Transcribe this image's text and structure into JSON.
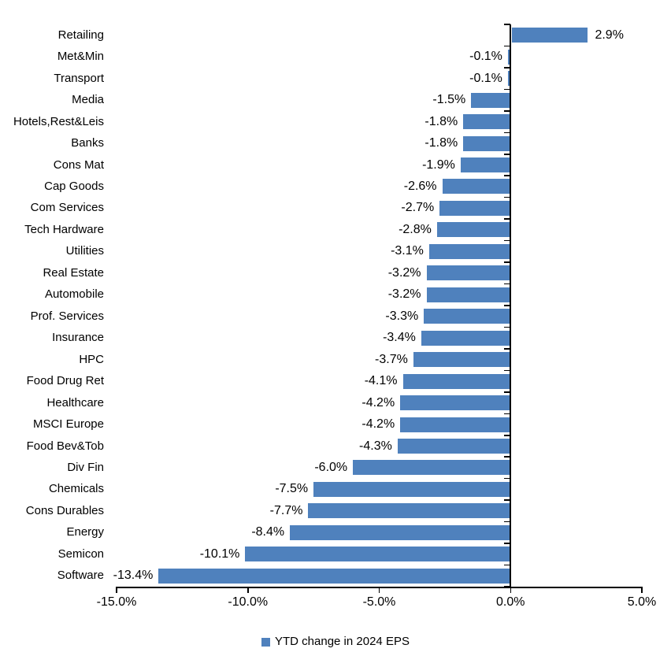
{
  "chart_data": {
    "type": "bar",
    "orientation": "horizontal",
    "title": "",
    "xlabel": "",
    "ylabel": "",
    "categories": [
      "Retailing",
      "Met&Min",
      "Transport",
      "Media",
      "Hotels,Rest&Leis",
      "Banks",
      "Cons Mat",
      "Cap Goods",
      "Com Services",
      "Tech Hardware",
      "Utilities",
      "Real Estate",
      "Automobile",
      "Prof. Services",
      "Insurance",
      "HPC",
      "Food Drug Ret",
      "Healthcare",
      "MSCI Europe",
      "Food Bev&Tob",
      "Div Fin",
      "Chemicals",
      "Cons Durables",
      "Energy",
      "Semicon",
      "Software"
    ],
    "series": [
      {
        "name": "YTD change in 2024 EPS",
        "color": "#4F81BD",
        "values": [
          2.9,
          -0.1,
          -0.1,
          -1.5,
          -1.8,
          -1.8,
          -1.9,
          -2.6,
          -2.7,
          -2.8,
          -3.1,
          -3.2,
          -3.2,
          -3.3,
          -3.4,
          -3.7,
          -4.1,
          -4.2,
          -4.2,
          -4.3,
          -6.0,
          -7.5,
          -7.7,
          -8.4,
          -10.1,
          -13.4
        ]
      }
    ],
    "value_labels": [
      "2.9%",
      "-0.1%",
      "-0.1%",
      "-1.5%",
      "-1.8%",
      "-1.8%",
      "-1.9%",
      "-2.6%",
      "-2.7%",
      "-2.8%",
      "-3.1%",
      "-3.2%",
      "-3.2%",
      "-3.3%",
      "-3.4%",
      "-3.7%",
      "-4.1%",
      "-4.2%",
      "-4.2%",
      "-4.3%",
      "-6.0%",
      "-7.5%",
      "-7.7%",
      "-8.4%",
      "-10.1%",
      "-13.4%"
    ],
    "x_ticks": [
      {
        "value": -15,
        "label": "-15.0%"
      },
      {
        "value": -10,
        "label": "-10.0%"
      },
      {
        "value": -5,
        "label": "-5.0%"
      },
      {
        "value": 0,
        "label": "0.0%"
      },
      {
        "value": 5,
        "label": "5.0%"
      }
    ],
    "xlim": [
      -15,
      5
    ],
    "grid": false,
    "legend_position": "bottom-center"
  },
  "legend": {
    "label": "YTD change in 2024 EPS",
    "swatch_color": "#4F81BD"
  },
  "colors": {
    "bar": "#4F81BD",
    "axis": "#000000",
    "text": "#000000",
    "background": "#FFFFFF"
  }
}
